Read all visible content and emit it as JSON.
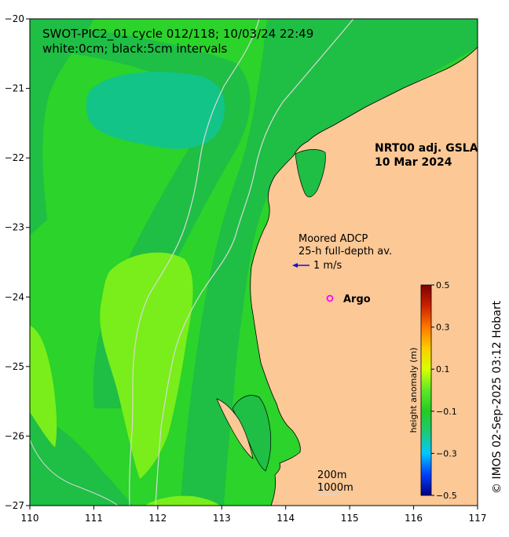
{
  "title": {
    "line1": "SWOT-PIC2_01 cycle 012/118; 10/03/24 22:49",
    "line2": "white:0cm; black:5cm intervals"
  },
  "product": {
    "line1": "NRT00 adj. GSLA",
    "line2": "10 Mar 2024"
  },
  "adcp_legend": {
    "line1": "Moored ADCP",
    "line2": "25-h full-depth av.",
    "scale_label": "1 m/s"
  },
  "argo_legend": {
    "label": "Argo",
    "color": "#ff00ff"
  },
  "isobath_legend": {
    "line1": "200m",
    "line2": "1000m"
  },
  "axes": {
    "x_ticks": [
      "110",
      "111",
      "112",
      "113",
      "114",
      "115",
      "116",
      "117"
    ],
    "y_ticks": [
      "−20",
      "−21",
      "−22",
      "−23",
      "−24",
      "−25",
      "−26",
      "−27"
    ],
    "lon_range": [
      110,
      117
    ],
    "lat_range": [
      -27,
      -20
    ]
  },
  "colorbar": {
    "label": "height anomaly (m)",
    "ticks": [
      "0.5",
      "0.3",
      "0.1",
      "−0.1",
      "−0.3",
      "−0.5"
    ],
    "range": [
      -0.5,
      0.5
    ],
    "stops": [
      "#00007f",
      "#0040ff",
      "#00c8ff",
      "#20c878",
      "#22cc22",
      "#5ee82a",
      "#d8ff00",
      "#ffcc00",
      "#ff7700",
      "#cc2200",
      "#7f0000"
    ]
  },
  "credit": "© IMOS 02-Sep-2025 03:12 Hobart",
  "colors": {
    "land": "#fbc896",
    "sea_base": "#2bd32b",
    "sea_dark": "#1fbe45",
    "sea_teal": "#12c488",
    "sea_lime": "#7aee1a",
    "coast": "#000000",
    "isobath": "#d8d8d8"
  }
}
